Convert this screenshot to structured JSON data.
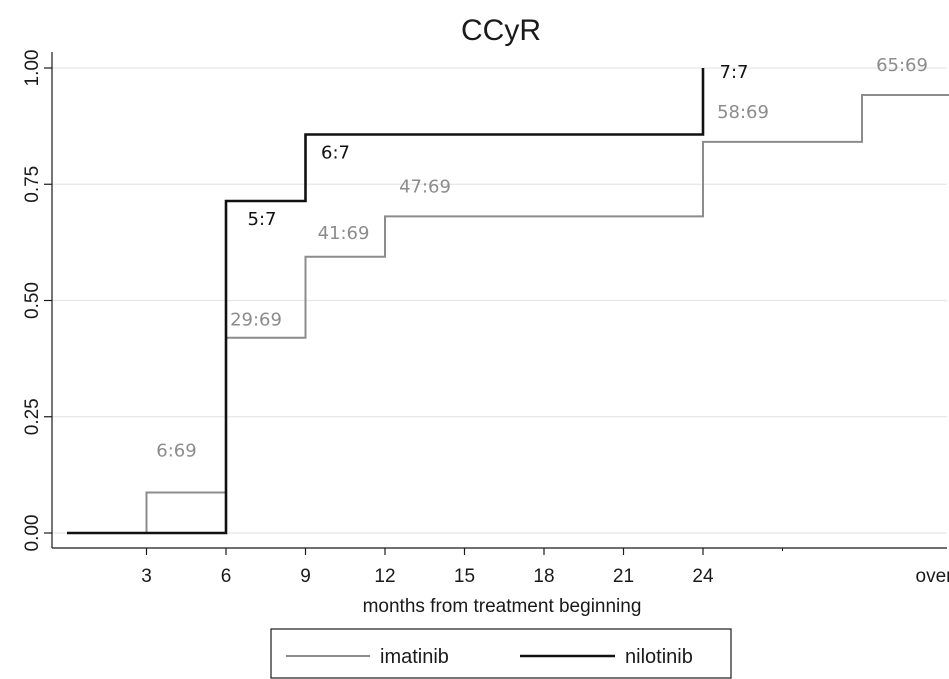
{
  "chart_data": {
    "type": "line",
    "step": true,
    "title": "CCyR",
    "xlabel": "months from treatment beginning",
    "ylabel": "",
    "xlim": [
      0,
      36
    ],
    "ylim": [
      0,
      1
    ],
    "x_ticks": [
      {
        "value": 3,
        "label": "3"
      },
      {
        "value": 6,
        "label": "6"
      },
      {
        "value": 9,
        "label": "9"
      },
      {
        "value": 12,
        "label": "12"
      },
      {
        "value": 15,
        "label": "15"
      },
      {
        "value": 18,
        "label": "18"
      },
      {
        "value": 21,
        "label": "21"
      },
      {
        "value": 24,
        "label": "24"
      },
      {
        "value": 33,
        "label": "overall"
      }
    ],
    "y_ticks": [
      {
        "value": 0,
        "label": "0.00"
      },
      {
        "value": 0.25,
        "label": "0.25"
      },
      {
        "value": 0.5,
        "label": "0.50"
      },
      {
        "value": 0.75,
        "label": "0.75"
      },
      {
        "value": 1,
        "label": "1.00"
      }
    ],
    "grid": "horizontal",
    "legend_position": "bottom",
    "series": [
      {
        "name": "imatinib",
        "color": "#8c8c8c",
        "points": [
          {
            "x": 0,
            "y": 0
          },
          {
            "x": 3,
            "y": 0.087
          },
          {
            "x": 6,
            "y": 0.42
          },
          {
            "x": 9,
            "y": 0.594
          },
          {
            "x": 12,
            "y": 0.681
          },
          {
            "x": 24,
            "y": 0.841
          },
          {
            "x": 30,
            "y": 0.942
          },
          {
            "x": 33.5,
            "y": 0.942
          }
        ],
        "labels": [
          {
            "x": 3,
            "y": 0.087,
            "text": "6:69"
          },
          {
            "x": 6,
            "y": 0.42,
            "text": "29:69"
          },
          {
            "x": 9,
            "y": 0.594,
            "text": "41:69"
          },
          {
            "x": 12,
            "y": 0.681,
            "text": "47:69"
          },
          {
            "x": 24,
            "y": 0.841,
            "text": "58:69"
          },
          {
            "x": 30,
            "y": 0.942,
            "text": "65:69"
          }
        ]
      },
      {
        "name": "nilotinib",
        "color": "#111111",
        "points": [
          {
            "x": 0,
            "y": 0
          },
          {
            "x": 6,
            "y": 0.714
          },
          {
            "x": 9,
            "y": 0.857
          },
          {
            "x": 24,
            "y": 1.0
          }
        ],
        "labels": [
          {
            "x": 6,
            "y": 0.714,
            "text": "5:7"
          },
          {
            "x": 9,
            "y": 0.857,
            "text": "6:7"
          },
          {
            "x": 24,
            "y": 1.0,
            "text": "7:7"
          }
        ]
      }
    ]
  }
}
